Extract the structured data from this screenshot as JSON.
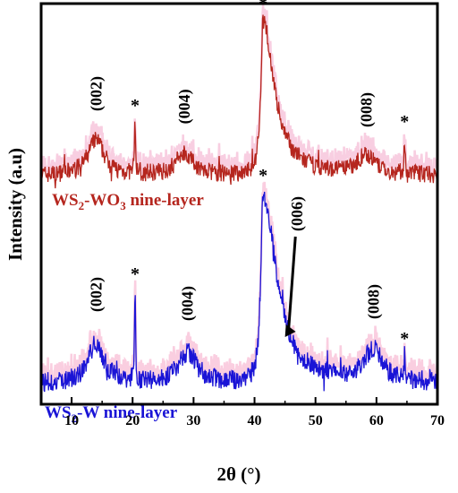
{
  "chart_data": {
    "type": "line",
    "xlabel": "2θ (°)",
    "ylabel": "Intensity (a.u)",
    "xlim": [
      5,
      70
    ],
    "x_ticks": [
      "10",
      "20",
      "30",
      "40",
      "50",
      "60",
      "70"
    ],
    "y_ticks": [],
    "grid": false,
    "series": [
      {
        "name": "WS2-WO3 nine-layer",
        "name_parts": {
          "a": "WS",
          "sub1": "2",
          "b": "-WO",
          "sub2": "3",
          "c": " nine-layer"
        },
        "color": "#b5261e",
        "shadow_color": "#f2a5c8",
        "baseline": 0.0,
        "noise": 0.55,
        "peaks": [
          {
            "x": 14.0,
            "h": 2.2,
            "w": 1.6
          },
          {
            "x": 20.4,
            "h": 3.2,
            "w": 0.1
          },
          {
            "x": 28.5,
            "h": 1.4,
            "w": 1.7
          },
          {
            "x": 41.4,
            "h": 9.5,
            "w": 0.45,
            "tail": 2.2
          },
          {
            "x": 58.3,
            "h": 1.2,
            "w": 1.6
          },
          {
            "x": 64.6,
            "h": 2.2,
            "w": 0.1
          }
        ],
        "peak_labels": [
          {
            "text": "(002)",
            "x": 14.0
          },
          {
            "text": "(004)",
            "x": 28.5
          },
          {
            "text": "(008)",
            "x": 58.3
          }
        ],
        "star_x": [
          20.4,
          41.4,
          64.6
        ]
      },
      {
        "name": "WS2-W nine-layer",
        "name_parts": {
          "a": "WS",
          "sub1": "2",
          "b": "-W nine-layer",
          "sub2": "",
          "c": ""
        },
        "color": "#1a14d6",
        "shadow_color": "#f6a6c6",
        "baseline": 0.0,
        "noise": 0.55,
        "peaks": [
          {
            "x": 14.0,
            "h": 2.2,
            "w": 1.6
          },
          {
            "x": 20.4,
            "h": 5.0,
            "w": 0.1
          },
          {
            "x": 29.0,
            "h": 1.7,
            "w": 1.8
          },
          {
            "x": 41.4,
            "h": 10.5,
            "w": 0.45,
            "tail": 2.6
          },
          {
            "x": 59.5,
            "h": 1.8,
            "w": 1.7
          },
          {
            "x": 64.6,
            "h": 1.4,
            "w": 0.1
          }
        ],
        "peak_labels": [
          {
            "text": "(002)",
            "x": 14.0
          },
          {
            "text": "(004)",
            "x": 29.0
          },
          {
            "text": "(006)",
            "x": 47.0
          },
          {
            "text": "(008)",
            "x": 59.5
          }
        ],
        "star_x": [
          20.4,
          41.4,
          64.6
        ]
      }
    ],
    "annotations": {
      "star": "*"
    }
  }
}
